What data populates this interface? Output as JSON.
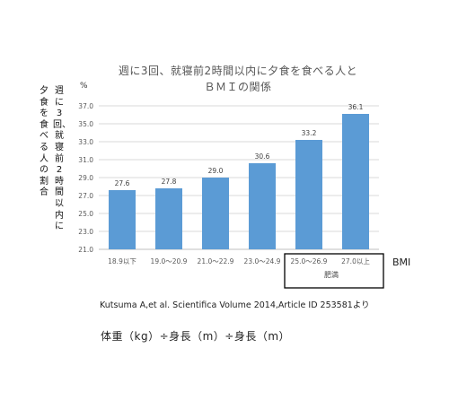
{
  "chart_data": {
    "type": "bar",
    "title": "週に3回、就寝前2時間以内に夕食を食べる人と",
    "subtitle": "ＢＭＩの関係",
    "ylabel_col1": "週に3回、就寝前2時間以内に",
    "ylabel_col2": "夕食を食べる人の割合",
    "y_unit": "%",
    "xlabel": "BMI",
    "categories": [
      "18.9以下",
      "19.0～20.9",
      "21.0～22.9",
      "23.0～24.9",
      "25.0～26.9",
      "27.0以上"
    ],
    "values": [
      27.6,
      27.8,
      29.0,
      30.6,
      33.2,
      36.1
    ],
    "value_labels": [
      "27.6",
      "27.8",
      "29.0",
      "30.6",
      "33.2",
      "36.1"
    ],
    "ylim": [
      21.0,
      37.0
    ],
    "yticks": [
      "21.0",
      "23.0",
      "25.0",
      "27.0",
      "29.0",
      "31.0",
      "33.0",
      "35.0",
      "37.0"
    ],
    "grid": true,
    "bar_color": "#5b9bd5",
    "group_label": "肥満"
  },
  "source": "Kutsuma A,et al. Scientifica Volume 2014,Article ID 253581より",
  "formula": "体重（kg）÷身長（m）÷身長（m）"
}
